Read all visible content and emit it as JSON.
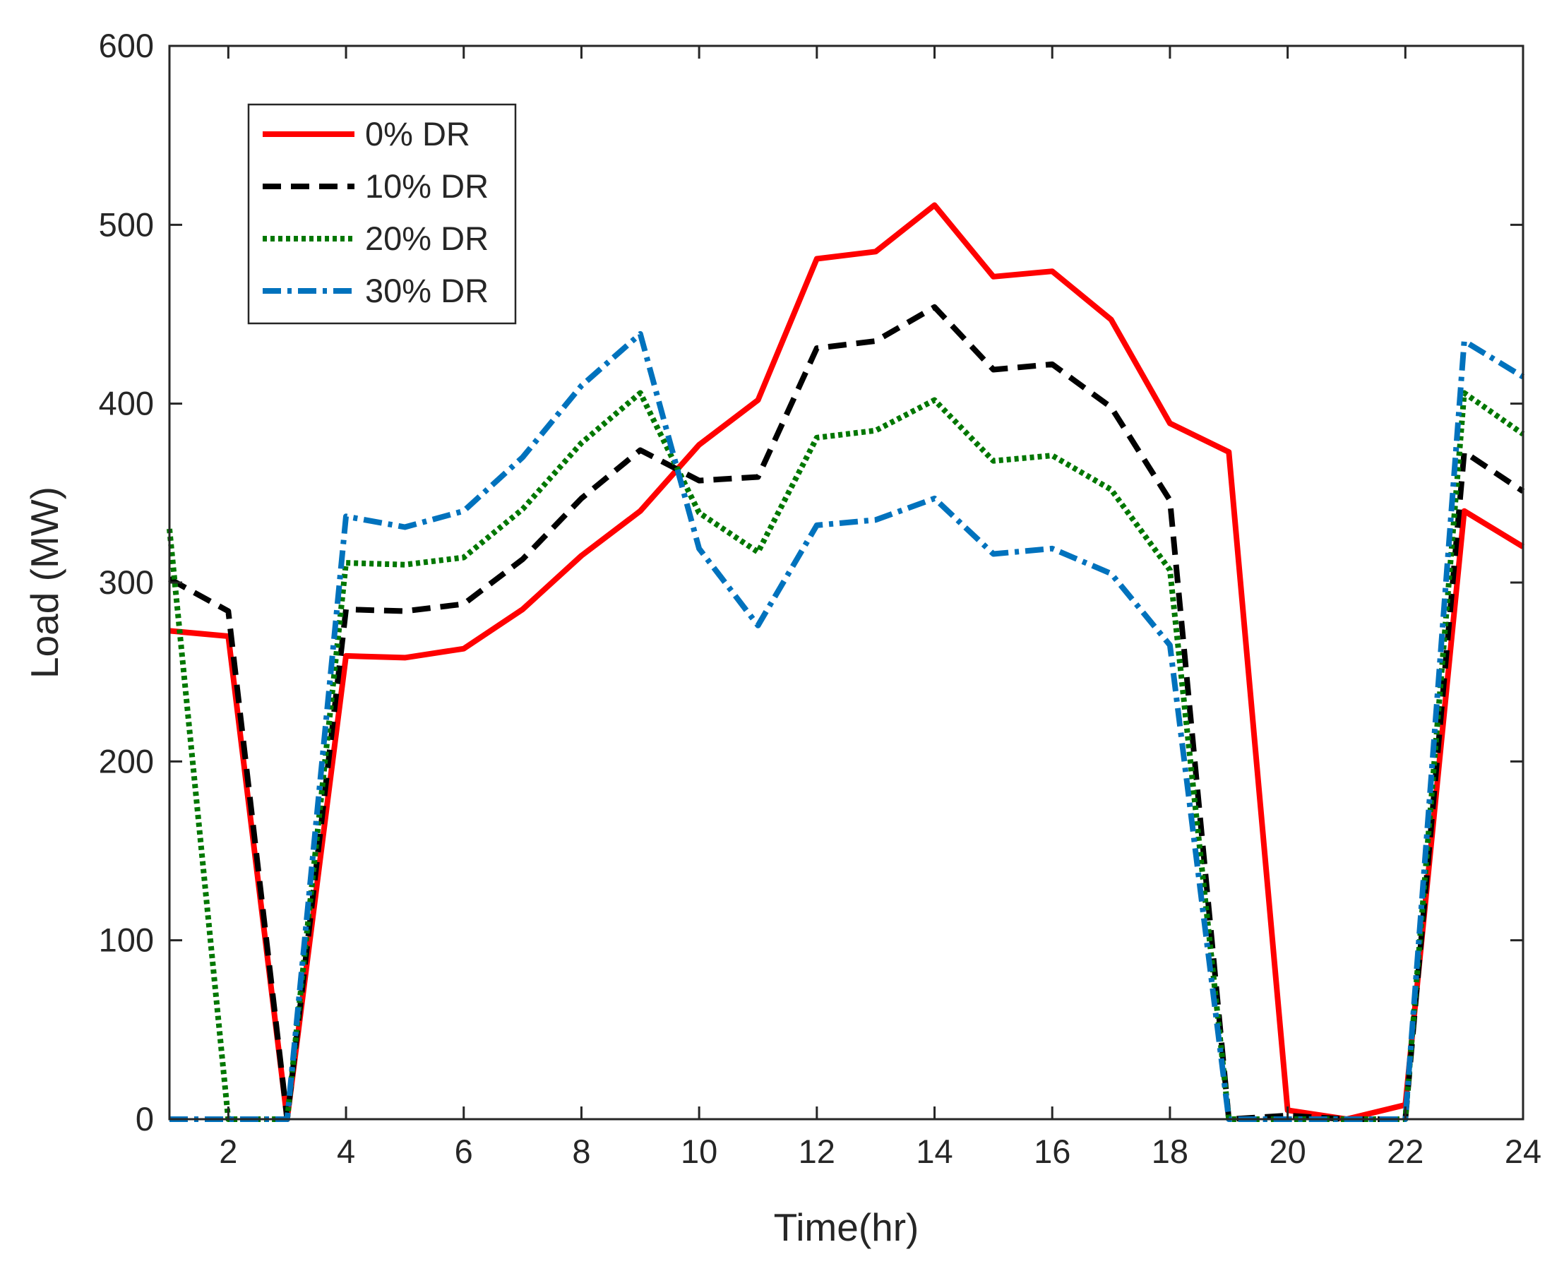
{
  "chart_data": {
    "type": "line",
    "title": "",
    "xlabel": "Time(hr)",
    "ylabel": "Load (MW)",
    "xlim": [
      1,
      24
    ],
    "ylim": [
      0,
      600
    ],
    "xticks": [
      2,
      4,
      6,
      8,
      10,
      12,
      14,
      16,
      18,
      20,
      22,
      24
    ],
    "yticks": [
      0,
      100,
      200,
      300,
      400,
      500,
      600
    ],
    "x": [
      1,
      2,
      3,
      4,
      5,
      6,
      7,
      8,
      9,
      10,
      11,
      12,
      13,
      14,
      15,
      16,
      17,
      18,
      19,
      20,
      21,
      22,
      23,
      24
    ],
    "legend_position": "top-left",
    "series": [
      {
        "name": "0% DR",
        "color": "#ff0000",
        "style": "solid",
        "values": [
          273,
          270,
          0,
          259,
          258,
          263,
          285,
          315,
          340,
          377,
          402,
          481,
          485,
          511,
          471,
          474,
          447,
          389,
          373,
          5,
          0,
          8,
          340,
          320
        ]
      },
      {
        "name": "10% DR",
        "color": "#000000",
        "style": "dashed",
        "values": [
          302,
          284,
          0,
          285,
          284,
          288,
          313,
          347,
          374,
          357,
          359,
          431,
          435,
          454,
          419,
          422,
          398,
          346,
          0,
          2,
          0,
          0,
          373,
          351
        ]
      },
      {
        "name": "20% DR",
        "color": "#007700",
        "style": "dotted",
        "values": [
          330,
          0,
          0,
          311,
          310,
          314,
          341,
          378,
          406,
          339,
          317,
          381,
          385,
          402,
          368,
          371,
          352,
          307,
          0,
          0,
          0,
          0,
          406,
          383
        ]
      },
      {
        "name": "30% DR",
        "color": "#0072bd",
        "style": "dashdot",
        "values": [
          0,
          0,
          0,
          337,
          331,
          340,
          370,
          410,
          439,
          319,
          276,
          332,
          335,
          347,
          316,
          319,
          305,
          265,
          0,
          0,
          0,
          0,
          435,
          415
        ]
      }
    ]
  }
}
